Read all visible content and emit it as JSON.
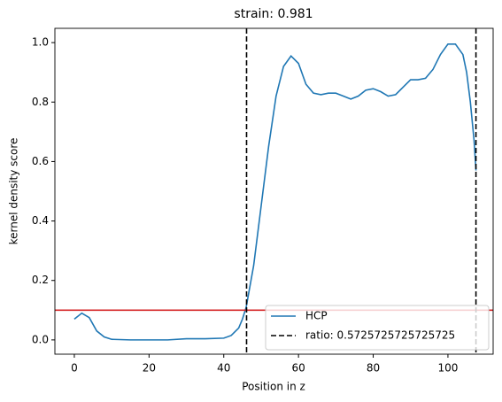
{
  "chart_data": {
    "type": "line",
    "title": "strain: 0.981",
    "x_label": "Position in z",
    "y_label": "kernel density score",
    "x": [
      0,
      2,
      4,
      6,
      8,
      10,
      15,
      20,
      25,
      30,
      35,
      40,
      42,
      44,
      45,
      46,
      48,
      50,
      52,
      54,
      56,
      58,
      60,
      62,
      64,
      66,
      68,
      70,
      72,
      74,
      76,
      78,
      80,
      82,
      84,
      86,
      88,
      90,
      92,
      94,
      96,
      98,
      100,
      102,
      104,
      105,
      106,
      107,
      107.5
    ],
    "series": [
      {
        "name": "HCP",
        "color": "#1f77b4",
        "values": [
          0.07,
          0.09,
          0.075,
          0.03,
          0.01,
          0.002,
          0,
          0,
          0,
          0.004,
          0.004,
          0.006,
          0.015,
          0.04,
          0.07,
          0.11,
          0.25,
          0.45,
          0.65,
          0.82,
          0.92,
          0.955,
          0.93,
          0.86,
          0.83,
          0.825,
          0.83,
          0.83,
          0.82,
          0.81,
          0.82,
          0.84,
          0.845,
          0.835,
          0.82,
          0.825,
          0.85,
          0.875,
          0.875,
          0.88,
          0.91,
          0.96,
          0.995,
          0.995,
          0.96,
          0.9,
          0.8,
          0.67,
          0.57
        ]
      }
    ],
    "vlines": {
      "name": "ratio: 0.5725725725725725",
      "color": "#000000",
      "x": [
        46.1,
        107.5
      ]
    },
    "hline": {
      "value": 0.1,
      "color": "#d62728"
    },
    "xlim": [
      -5.2,
      112.1
    ],
    "xticks": [
      0,
      20,
      40,
      60,
      80,
      100
    ],
    "ylim": [
      -0.048,
      1.048
    ],
    "yticks": [
      {
        "value": 0,
        "label": "0.0"
      },
      {
        "value": 0.2,
        "label": "0.2"
      },
      {
        "value": 0.4,
        "label": "0.4"
      },
      {
        "value": 0.6,
        "label": "0.6"
      },
      {
        "value": 0.8,
        "label": "0.8"
      },
      {
        "value": 1,
        "label": "1.0"
      }
    ],
    "legend": "lower right"
  }
}
